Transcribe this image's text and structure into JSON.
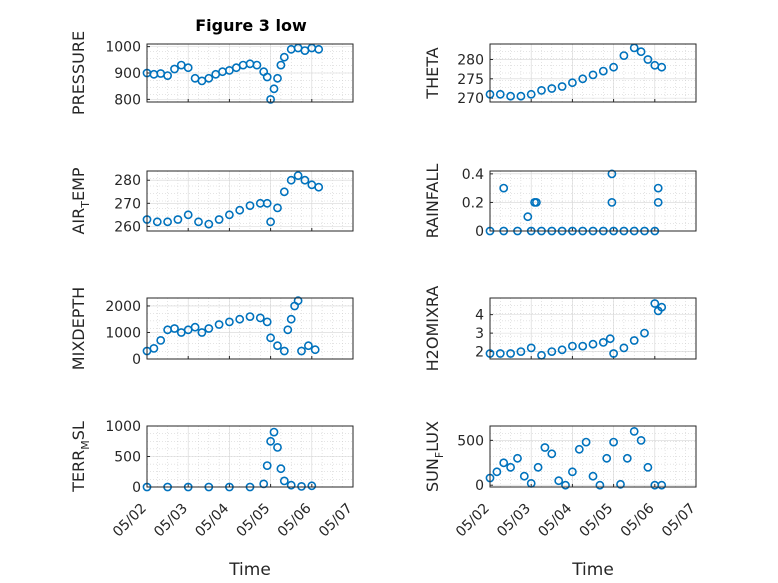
{
  "figure_title": "Figure 3 low",
  "colors": {
    "marker": "#0072BD",
    "axis": "#262626"
  },
  "chart_data": [
    {
      "type": "scatter",
      "id": "pressure",
      "ylabel": "PRESSURE",
      "ylabel_sub": "",
      "ylim": [
        790,
        1010
      ],
      "yticks": [
        800,
        900,
        1000
      ],
      "x": [
        "05/02 00:00",
        "05/02 04:00",
        "05/02 08:00",
        "05/02 12:00",
        "05/02 16:00",
        "05/02 20:00",
        "05/03 00:00",
        "05/03 04:00",
        "05/03 08:00",
        "05/03 12:00",
        "05/03 16:00",
        "05/03 20:00",
        "05/04 00:00",
        "05/04 04:00",
        "05/04 08:00",
        "05/04 12:00",
        "05/04 16:00",
        "05/04 20:00",
        "05/04 22:00",
        "05/05 00:00",
        "05/05 02:00",
        "05/05 04:00",
        "05/05 06:00",
        "05/05 08:00",
        "05/05 12:00",
        "05/05 16:00",
        "05/05 20:00",
        "05/06 00:00",
        "05/06 04:00"
      ],
      "y": [
        900,
        895,
        898,
        890,
        915,
        930,
        920,
        880,
        870,
        880,
        895,
        905,
        910,
        920,
        930,
        935,
        930,
        905,
        885,
        800,
        840,
        880,
        930,
        960,
        990,
        995,
        985,
        995,
        990
      ]
    },
    {
      "type": "scatter",
      "id": "theta",
      "ylabel": "THETA",
      "ylabel_sub": "",
      "ylim": [
        269,
        284
      ],
      "yticks": [
        270,
        275,
        280
      ],
      "x": [
        "05/02 00:00",
        "05/02 06:00",
        "05/02 12:00",
        "05/02 18:00",
        "05/03 00:00",
        "05/03 06:00",
        "05/03 12:00",
        "05/03 18:00",
        "05/04 00:00",
        "05/04 06:00",
        "05/04 12:00",
        "05/04 18:00",
        "05/05 00:00",
        "05/05 06:00",
        "05/05 12:00",
        "05/05 16:00",
        "05/05 20:00",
        "05/06 00:00",
        "05/06 04:00"
      ],
      "y": [
        271,
        271,
        270.5,
        270.5,
        271,
        272,
        272.5,
        273,
        274,
        275,
        276,
        277,
        278,
        281,
        283,
        282,
        280,
        278.5,
        278
      ]
    },
    {
      "type": "scatter",
      "id": "air_temp",
      "ylabel": "AIR",
      "ylabel_sub": "T",
      "ylabel_rest": "EMP",
      "ylim": [
        258,
        284
      ],
      "yticks": [
        260,
        270,
        280
      ],
      "x": [
        "05/02 00:00",
        "05/02 06:00",
        "05/02 12:00",
        "05/02 18:00",
        "05/03 00:00",
        "05/03 06:00",
        "05/03 12:00",
        "05/03 18:00",
        "05/04 00:00",
        "05/04 06:00",
        "05/04 12:00",
        "05/04 18:00",
        "05/04 22:00",
        "05/05 00:00",
        "05/05 04:00",
        "05/05 08:00",
        "05/05 12:00",
        "05/05 16:00",
        "05/05 20:00",
        "05/06 00:00",
        "05/06 04:00"
      ],
      "y": [
        263,
        262,
        262,
        263,
        265,
        262,
        261,
        263,
        265,
        267,
        269,
        270,
        270,
        262,
        268,
        275,
        280,
        282,
        280,
        278,
        277
      ]
    },
    {
      "type": "scatter",
      "id": "rainfall",
      "ylabel": "RAINFALL",
      "ylabel_sub": "",
      "ylim": [
        0,
        0.42
      ],
      "yticks": [
        0,
        0.2,
        0.4
      ],
      "x": [
        "05/02 00:00",
        "05/02 08:00",
        "05/02 16:00",
        "05/03 00:00",
        "05/03 06:00",
        "05/03 12:00",
        "05/03 18:00",
        "05/04 00:00",
        "05/04 06:00",
        "05/04 12:00",
        "05/04 18:00",
        "05/05 00:00",
        "05/05 06:00",
        "05/05 12:00",
        "05/05 18:00",
        "05/06 00:00",
        "05/02 08:00",
        "05/02 22:00",
        "05/03 02:00",
        "05/03 03:00",
        "05/04 23:00",
        "05/04 23:00",
        "05/06 02:00",
        "05/06 02:00"
      ],
      "y": [
        0,
        0,
        0,
        0,
        0,
        0,
        0,
        0,
        0,
        0,
        0,
        0,
        0,
        0,
        0,
        0,
        0.3,
        0.1,
        0.2,
        0.2,
        0.4,
        0.2,
        0.3,
        0.2
      ]
    },
    {
      "type": "scatter",
      "id": "mixdepth",
      "ylabel": "MIXDEPTH",
      "ylabel_sub": "",
      "ylim": [
        0,
        2300
      ],
      "yticks": [
        0,
        1000,
        2000
      ],
      "x": [
        "05/02 00:00",
        "05/02 04:00",
        "05/02 08:00",
        "05/02 12:00",
        "05/02 16:00",
        "05/02 20:00",
        "05/03 00:00",
        "05/03 04:00",
        "05/03 08:00",
        "05/03 12:00",
        "05/03 18:00",
        "05/04 00:00",
        "05/04 06:00",
        "05/04 12:00",
        "05/04 18:00",
        "05/04 22:00",
        "05/05 00:00",
        "05/05 04:00",
        "05/05 08:00",
        "05/05 10:00",
        "05/05 12:00",
        "05/05 14:00",
        "05/05 16:00",
        "05/05 18:00",
        "05/05 22:00",
        "05/06 02:00"
      ],
      "y": [
        300,
        400,
        700,
        1100,
        1150,
        1000,
        1100,
        1200,
        1000,
        1150,
        1300,
        1400,
        1500,
        1600,
        1550,
        1400,
        800,
        500,
        300,
        1100,
        1500,
        2000,
        2200,
        300,
        500,
        350
      ]
    },
    {
      "type": "scatter",
      "id": "h2omixra",
      "ylabel": "H2OMIXRA",
      "ylabel_sub": "",
      "ylim": [
        1.6,
        4.9
      ],
      "yticks": [
        2,
        3,
        4
      ],
      "x": [
        "05/02 00:00",
        "05/02 06:00",
        "05/02 12:00",
        "05/02 18:00",
        "05/03 00:00",
        "05/03 06:00",
        "05/03 12:00",
        "05/03 18:00",
        "05/04 00:00",
        "05/04 06:00",
        "05/04 12:00",
        "05/04 18:00",
        "05/04 22:00",
        "05/05 00:00",
        "05/05 06:00",
        "05/05 12:00",
        "05/05 18:00",
        "05/06 00:00",
        "05/06 02:00",
        "05/06 04:00"
      ],
      "y": [
        1.9,
        1.9,
        1.9,
        2.0,
        2.2,
        1.8,
        2.0,
        2.1,
        2.3,
        2.3,
        2.4,
        2.5,
        2.7,
        1.9,
        2.2,
        2.6,
        3.0,
        4.6,
        4.2,
        4.4
      ]
    },
    {
      "type": "scatter",
      "id": "terr_msl",
      "ylabel": "TERR",
      "ylabel_sub": "M",
      "ylabel_rest": "SL",
      "ylim": [
        0,
        1000
      ],
      "yticks": [
        0,
        500,
        1000
      ],
      "x": [
        "05/02 00:00",
        "05/02 12:00",
        "05/03 00:00",
        "05/03 12:00",
        "05/04 00:00",
        "05/04 12:00",
        "05/04 20:00",
        "05/04 22:00",
        "05/05 00:00",
        "05/05 02:00",
        "05/05 04:00",
        "05/05 06:00",
        "05/05 08:00",
        "05/05 12:00",
        "05/05 18:00",
        "05/06 00:00"
      ],
      "y": [
        0,
        0,
        0,
        0,
        0,
        0,
        50,
        350,
        750,
        900,
        650,
        300,
        100,
        30,
        10,
        20
      ]
    },
    {
      "type": "scatter",
      "id": "sunflux",
      "ylabel": "SUN",
      "ylabel_sub": "F",
      "ylabel_rest": "LUX",
      "ylim": [
        -20,
        660
      ],
      "yticks": [
        0,
        500
      ],
      "x": [
        "05/02 00:00",
        "05/02 04:00",
        "05/02 08:00",
        "05/02 12:00",
        "05/02 16:00",
        "05/02 20:00",
        "05/03 00:00",
        "05/03 04:00",
        "05/03 08:00",
        "05/03 12:00",
        "05/03 16:00",
        "05/03 20:00",
        "05/04 00:00",
        "05/04 04:00",
        "05/04 08:00",
        "05/04 12:00",
        "05/04 16:00",
        "05/04 20:00",
        "05/05 00:00",
        "05/05 04:00",
        "05/05 08:00",
        "05/05 12:00",
        "05/05 16:00",
        "05/05 20:00",
        "05/06 00:00",
        "05/06 04:00"
      ],
      "y": [
        80,
        150,
        250,
        200,
        300,
        100,
        20,
        200,
        420,
        350,
        50,
        0,
        150,
        400,
        480,
        100,
        0,
        300,
        480,
        10,
        300,
        600,
        500,
        200,
        0,
        0
      ]
    }
  ],
  "x_axis": {
    "ticks": [
      "05/02",
      "05/03",
      "05/04",
      "05/05",
      "05/06",
      "05/07"
    ],
    "label": "Time"
  }
}
